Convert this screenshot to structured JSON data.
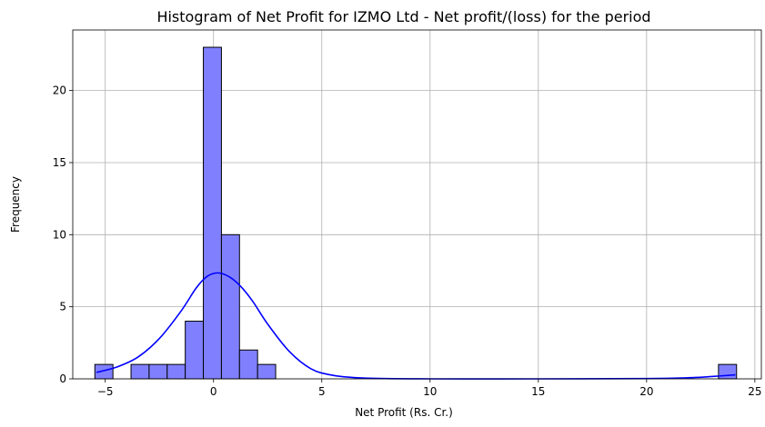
{
  "chart_data": {
    "type": "bar",
    "title": "Histogram of Net Profit for IZMO Ltd - Net profit/(loss) for the period",
    "xlabel": "Net Profit (Rs. Cr.)",
    "ylabel": "Frequency",
    "xlim": [
      -6.5,
      25.3
    ],
    "ylim": [
      0,
      24.2
    ],
    "xticks": [
      -5,
      0,
      5,
      10,
      15,
      20,
      25
    ],
    "yticks": [
      0,
      5,
      10,
      15,
      20
    ],
    "grid": true,
    "bin_width": 0.835,
    "bins": [
      {
        "x0": -5.48,
        "count": 1
      },
      {
        "x0": -3.81,
        "count": 1
      },
      {
        "x0": -2.975,
        "count": 1
      },
      {
        "x0": -2.14,
        "count": 1
      },
      {
        "x0": -1.305,
        "count": 4
      },
      {
        "x0": -0.47,
        "count": 23
      },
      {
        "x0": 0.365,
        "count": 10
      },
      {
        "x0": 1.2,
        "count": 2
      },
      {
        "x0": 2.035,
        "count": 1
      },
      {
        "x0": 23.32,
        "count": 1
      }
    ],
    "kde": {
      "color": "#0000ff",
      "x": [
        -5.4,
        -4.5,
        -3.5,
        -2.5,
        -1.5,
        -0.8,
        -0.3,
        0.2,
        0.7,
        1.2,
        1.8,
        2.5,
        3.5,
        4.5,
        5.5,
        7,
        10,
        15,
        20,
        22,
        23,
        24.1
      ],
      "y": [
        0.45,
        0.8,
        1.5,
        2.8,
        4.7,
        6.3,
        7.1,
        7.35,
        7.1,
        6.5,
        5.4,
        3.8,
        1.9,
        0.7,
        0.25,
        0.05,
        0.0,
        0.0,
        0.02,
        0.08,
        0.16,
        0.28
      ]
    },
    "bar_color": "#8080ff"
  }
}
